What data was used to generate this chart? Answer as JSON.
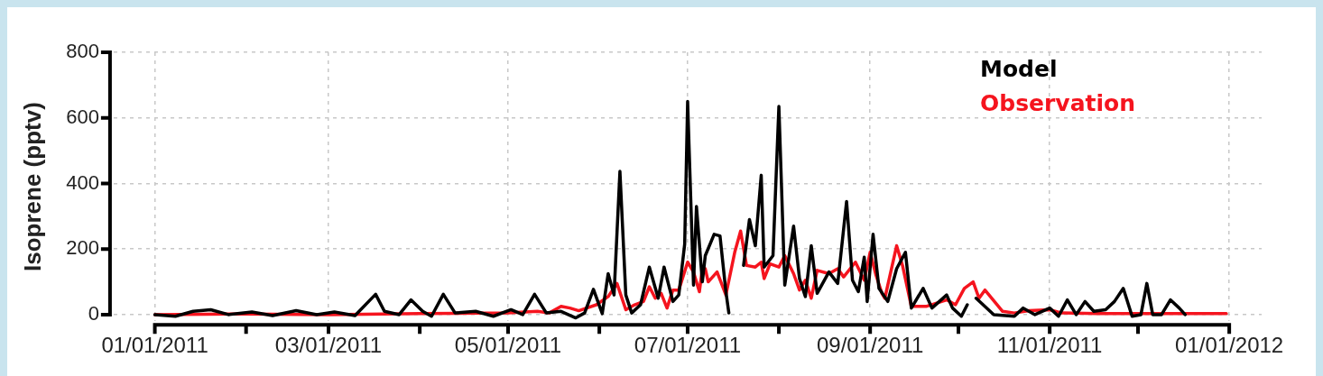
{
  "chart_data": {
    "type": "line",
    "ylabel": "Isoprene (pptv)",
    "legend": "top right",
    "grid": true,
    "line_style": "solid",
    "marker": "none",
    "xlim": [
      "2010-12-18",
      "2012-01-12"
    ],
    "xticks": [
      {
        "value": "2011-01-01",
        "label": "01/01/2011"
      },
      {
        "value": "2011-02-01",
        "label": null
      },
      {
        "value": "2011-03-01",
        "label": "03/01/2011"
      },
      {
        "value": "2011-04-01",
        "label": null
      },
      {
        "value": "2011-05-01",
        "label": "05/01/2011"
      },
      {
        "value": "2011-06-01",
        "label": null
      },
      {
        "value": "2011-07-01",
        "label": "07/01/2011"
      },
      {
        "value": "2011-08-01",
        "label": null
      },
      {
        "value": "2011-09-01",
        "label": "09/01/2011"
      },
      {
        "value": "2011-10-01",
        "label": null
      },
      {
        "value": "2011-11-01",
        "label": "11/01/2011"
      },
      {
        "value": "2011-12-01",
        "label": null
      },
      {
        "value": "2012-01-01",
        "label": "01/01/2012"
      }
    ],
    "ylim": [
      -20,
      800
    ],
    "yticks": [
      0,
      200,
      400,
      600,
      800
    ],
    "series": [
      {
        "name": "Model",
        "color": "#000000",
        "x": [
          "2011-01-01",
          "2011-01-08",
          "2011-01-14",
          "2011-01-20",
          "2011-01-26",
          "2011-02-03",
          "2011-02-10",
          "2011-02-18",
          "2011-02-25",
          "2011-03-03",
          "2011-03-10",
          "2011-03-17",
          "2011-03-20",
          "2011-03-25",
          "2011-03-29",
          "2011-04-02",
          "2011-04-05",
          "2011-04-09",
          "2011-04-13",
          "2011-04-20",
          "2011-04-26",
          "2011-05-02",
          "2011-05-06",
          "2011-05-10",
          "2011-05-14",
          "2011-05-19",
          "2011-05-24",
          "2011-05-27",
          "2011-05-30",
          "2011-06-02",
          "2011-06-04",
          "2011-06-06",
          "2011-06-08",
          "2011-06-10",
          "2011-06-12",
          "2011-06-15",
          "2011-06-18",
          "2011-06-21",
          "2011-06-23",
          "2011-06-26",
          "2011-06-28",
          "2011-06-30",
          "2011-07-01",
          "2011-07-03",
          "2011-07-04",
          "2011-07-06",
          "2011-07-07",
          "2011-07-10",
          "2011-07-12",
          "2011-07-14",
          "2011-07-15",
          "2011-07-17",
          "2011-07-20",
          "2011-07-22",
          "2011-07-24",
          "2011-07-26",
          "2011-07-27",
          "2011-07-30",
          "2011-08-01",
          "2011-08-03",
          "2011-08-04",
          "2011-08-06",
          "2011-08-08",
          "2011-08-10",
          "2011-08-12",
          "2011-08-14",
          "2011-08-18",
          "2011-08-21",
          "2011-08-24",
          "2011-08-26",
          "2011-08-28",
          "2011-08-30",
          "2011-08-31",
          "2011-09-02",
          "2011-09-04",
          "2011-09-07",
          "2011-09-10",
          "2011-09-13",
          "2011-09-15",
          "2011-09-19",
          "2011-09-22",
          "2011-09-27",
          "2011-09-29",
          "2011-10-02",
          "2011-10-04",
          "2011-10-05",
          "2011-10-07",
          "2011-10-13",
          "2011-10-20",
          "2011-10-23",
          "2011-10-27",
          "2011-11-01",
          "2011-11-04",
          "2011-11-07",
          "2011-11-10",
          "2011-11-13",
          "2011-11-16",
          "2011-11-20",
          "2011-11-23",
          "2011-11-26",
          "2011-11-29",
          "2011-12-02",
          "2011-12-04",
          "2011-12-06",
          "2011-12-09",
          "2011-12-12",
          "2011-12-15",
          "2011-12-17"
        ],
        "values": [
          0,
          -5,
          10,
          15,
          0,
          8,
          -3,
          12,
          0,
          8,
          -3,
          62,
          10,
          0,
          45,
          10,
          -5,
          62,
          5,
          10,
          -5,
          15,
          0,
          62,
          5,
          10,
          -10,
          5,
          77,
          3,
          125,
          60,
          437,
          60,
          5,
          30,
          145,
          50,
          145,
          40,
          60,
          215,
          650,
          90,
          330,
          100,
          180,
          245,
          240,
          70,
          5,
          null,
          150,
          290,
          210,
          425,
          145,
          180,
          635,
          90,
          150,
          270,
          110,
          55,
          210,
          65,
          130,
          95,
          345,
          105,
          70,
          175,
          40,
          245,
          80,
          40,
          140,
          190,
          20,
          80,
          20,
          60,
          20,
          -5,
          30,
          null,
          50,
          0,
          -5,
          20,
          0,
          20,
          -5,
          45,
          0,
          40,
          10,
          15,
          40,
          80,
          -5,
          0,
          95,
          0,
          0,
          45,
          20,
          0
        ]
      },
      {
        "name": "Observation",
        "color": "#f5141e",
        "x": [
          "2011-01-01",
          "2011-02-01",
          "2011-03-01",
          "2011-04-01",
          "2011-05-01",
          "2011-05-11",
          "2011-05-15",
          "2011-05-19",
          "2011-05-22",
          "2011-05-25",
          "2011-05-31",
          "2011-06-04",
          "2011-06-07",
          "2011-06-10",
          "2011-06-13",
          "2011-06-16",
          "2011-06-18",
          "2011-06-20",
          "2011-06-22",
          "2011-06-24",
          "2011-06-26",
          "2011-06-28",
          "2011-07-01",
          "2011-07-03",
          "2011-07-05",
          "2011-07-06",
          "2011-07-07",
          "2011-07-08",
          "2011-07-11",
          "2011-07-14",
          "2011-07-17",
          "2011-07-19",
          "2011-07-21",
          "2011-07-24",
          "2011-07-26",
          "2011-07-27",
          "2011-07-29",
          "2011-08-01",
          "2011-08-03",
          "2011-08-06",
          "2011-08-08",
          "2011-08-10",
          "2011-08-12",
          "2011-08-14",
          "2011-08-18",
          "2011-08-21",
          "2011-08-23",
          "2011-08-27",
          "2011-08-30",
          "2011-09-01",
          "2011-09-03",
          "2011-09-05",
          "2011-09-06",
          "2011-09-10",
          "2011-09-12",
          "2011-09-15",
          "2011-09-20",
          "2011-09-27",
          "2011-09-30",
          "2011-10-03",
          "2011-10-06",
          "2011-10-08",
          "2011-10-10",
          "2011-10-16",
          "2011-10-20",
          "2011-10-25",
          "2011-11-01",
          "2011-11-05",
          "2011-11-17",
          "2011-12-31"
        ],
        "values": [
          0,
          2,
          0,
          3,
          5,
          10,
          5,
          25,
          20,
          12,
          30,
          55,
          95,
          15,
          30,
          40,
          85,
          50,
          65,
          20,
          75,
          75,
          160,
          130,
          70,
          140,
          140,
          100,
          130,
          60,
          190,
          255,
          150,
          145,
          160,
          110,
          155,
          145,
          180,
          125,
          75,
          105,
          50,
          135,
          125,
          140,
          115,
          160,
          105,
          190,
          120,
          65,
          50,
          210,
          150,
          25,
          25,
          45,
          30,
          80,
          100,
          50,
          75,
          10,
          5,
          12,
          15,
          5,
          3,
          3
        ]
      }
    ]
  }
}
